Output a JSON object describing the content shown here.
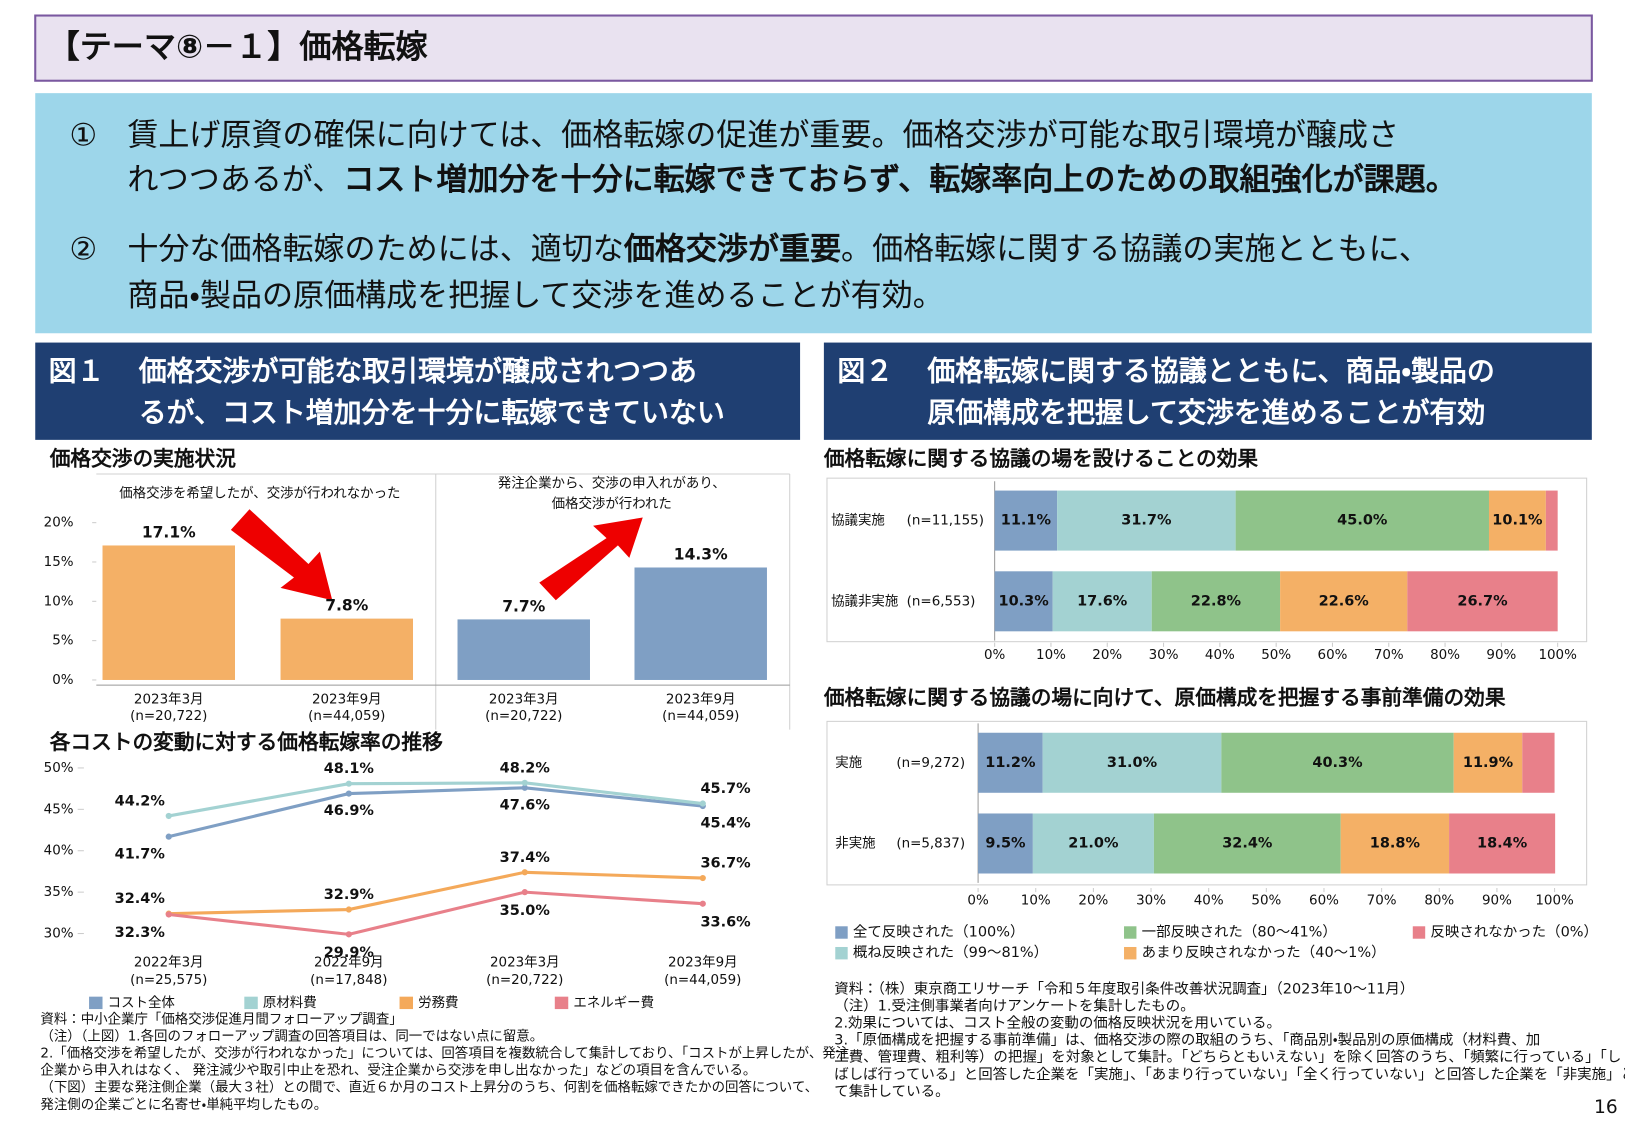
{
  "header": {
    "title": "【テーマ⑧－１】価格転嫁"
  },
  "summary": {
    "items": [
      {
        "marker": "①",
        "lines": [
          [
            {
              "text": "賃上げ原資の確保に向けては、価格転嫁の促進が重要。価格交渉が可能な取引環境が醸成さ",
              "bold": false
            }
          ],
          [
            {
              "text": "れつつあるが、",
              "bold": false
            },
            {
              "text": "コスト増加分を十分に転嫁できておらず、転嫁率向上のための取組強化が課題。",
              "bold": true
            }
          ]
        ]
      },
      {
        "marker": "②",
        "lines": [
          [
            {
              "text": "十分な価格転嫁のためには、適切な",
              "bold": false
            },
            {
              "text": "価格交渉が重要",
              "bold": true
            },
            {
              "text": "。価格転嫁に関する協議の実施とともに、",
              "bold": false
            }
          ],
          [
            {
              "text": "商品・製品の原価構成を把握して交渉を進めることが有効。",
              "bold": false
            }
          ]
        ]
      }
    ]
  },
  "figures": [
    {
      "label": "図１",
      "title_lines": [
        "価格交渉が可能な取引環境が醸成されつつあ",
        "るが、コスト増加分を十分に転嫁できていない"
      ],
      "notes": [
        "資料：中小企業庁「価格交渉促進月間フォローアップ調査」",
        "（注）（上図）1.各回のフォローアップ調査の回答項目は、同一ではない点に留意。",
        "2.「価格交渉を希望したが、交渉が行われなかった」については、回答項目を複数統合して集計しており、「コストが上昇したが、発注",
        "企業から申入れはなく、 発注減少や取引中止を恐れ、受注企業から交渉を申し出なかった」などの項目を含んでいる。",
        "（下図）主要な発注側企業（最大３社）との間で、直近６か月のコスト上昇分のうち、何割を価格転嫁できたかの回答について、",
        "発注側の企業ごとに名寄せ・単純平均したもの。"
      ]
    },
    {
      "label": "図２",
      "title_lines": [
        "価格転嫁に関する協議とともに、商品・製品の",
        "原価構成を把握して交渉を進めることが有効"
      ],
      "notes": [
        "資料：（株）東京商工リサーチ「令和５年度取引条件改善状況調査」（2023年10～11月）",
        "（注）1.受注側事業者向けアンケートを集計したもの。",
        "2.効果については、コスト全般の変動の価格反映状況を用いている。",
        "3.「原価構成を把握する事前準備」は、価格交渉の際の取組のうち、「商品別・製品別の原価構成（材料費、加",
        "工費、管理費、粗利等）の把握」を対象として集計。「どちらともいえない」を除く回答のうち、「頻繁に行っている」「し",
        "ばしば行っている」と回答した企業を「実施」、「あまり行っていない」「全く行っていない」と回答した企業を「非実施」とし",
        "て集計している。"
      ]
    }
  ],
  "page_number": "16",
  "chart_data": [
    {
      "type": "bar",
      "title": "価格交渉の実施状況",
      "group_labels": [
        [
          "価格交渉を希望したが、交渉が行われなかった"
        ],
        [
          "発注企業から、交渉の申入れがあり、",
          "価格交渉が行われた"
        ]
      ],
      "categories": [
        "2023年3月",
        "2023年9月",
        "2023年3月",
        "2023年9月"
      ],
      "sample_sizes": [
        "(n=20,722)",
        "(n=44,059)",
        "(n=20,722)",
        "(n=44,059)"
      ],
      "values": [
        17.1,
        7.8,
        7.7,
        14.3
      ],
      "value_labels": [
        "17.1%",
        "7.8%",
        "7.7%",
        "14.3%"
      ],
      "colors": [
        "#f4b066",
        "#f4b066",
        "#7f9fc4",
        "#7f9fc4"
      ],
      "ylim": [
        0,
        20
      ],
      "yticks": [
        {
          "value": 0,
          "label": "0%"
        },
        {
          "value": 5,
          "label": "5%"
        },
        {
          "value": 10,
          "label": "10%"
        },
        {
          "value": 15,
          "label": "15%"
        },
        {
          "value": 20,
          "label": "20%"
        }
      ]
    },
    {
      "type": "line",
      "title": "各コストの変動に対する価格転嫁率の推移",
      "categories": [
        "2022年3月",
        "2022年9月",
        "2023年3月",
        "2023年9月"
      ],
      "sample_sizes": [
        "(n=25,575)",
        "(n=17,848)",
        "(n=20,722)",
        "(n=44,059)"
      ],
      "series": [
        {
          "name": "コスト全体",
          "color": "#7f9fc4",
          "values": [
            41.7,
            46.9,
            47.6,
            45.4
          ],
          "value_labels": [
            "41.7%",
            "46.9%",
            "47.6%",
            "45.4%"
          ]
        },
        {
          "name": "原材料費",
          "color": "#a3d2d2",
          "values": [
            44.2,
            48.1,
            48.2,
            45.7
          ],
          "value_labels": [
            "44.2%",
            "48.1%",
            "48.2%",
            "45.7%"
          ]
        },
        {
          "name": "労務費",
          "color": "#f4a95a",
          "values": [
            32.4,
            32.9,
            37.4,
            36.7
          ],
          "value_labels": [
            "32.4%",
            "32.9%",
            "37.4%",
            "36.7%"
          ]
        },
        {
          "name": "エネルギー費",
          "color": "#e8808a",
          "values": [
            32.3,
            29.9,
            35.0,
            33.6
          ],
          "value_labels": [
            "32.3%",
            "29.9%",
            "35.0%",
            "33.6%"
          ]
        }
      ],
      "ylim": [
        28,
        50
      ],
      "yticks": [
        {
          "value": 30,
          "label": "30%"
        },
        {
          "value": 35,
          "label": "35%"
        },
        {
          "value": 40,
          "label": "40%"
        },
        {
          "value": 45,
          "label": "45%"
        },
        {
          "value": 50,
          "label": "50%"
        }
      ]
    },
    {
      "type": "stacked-barh",
      "title": "価格転嫁に関する協議の場を設けることの効果",
      "categories": [
        "協議実施",
        "協議非実施"
      ],
      "sample_sizes": [
        "(n=11,155)",
        "(n=6,553)"
      ],
      "series": [
        {
          "color": "#7f9fc4",
          "values": [
            11.1,
            10.3
          ],
          "value_labels": [
            "11.1%",
            "10.3%"
          ]
        },
        {
          "color": "#a3d2d2",
          "values": [
            31.7,
            17.6
          ],
          "value_labels": [
            "31.7%",
            "17.6%"
          ]
        },
        {
          "color": "#8fc38a",
          "values": [
            45.0,
            22.8
          ],
          "value_labels": [
            "45.0%",
            "22.8%"
          ]
        },
        {
          "color": "#f4b066",
          "values": [
            10.1,
            22.6
          ],
          "value_labels": [
            "10.1%",
            "22.6%"
          ]
        },
        {
          "color": "#e8808a",
          "values": [
            2.1,
            26.7
          ],
          "value_labels": [
            null,
            "26.7%"
          ]
        }
      ],
      "xlim": [
        0,
        100
      ],
      "xticks": [
        {
          "value": 0,
          "label": "0%"
        },
        {
          "value": 10,
          "label": "10%"
        },
        {
          "value": 20,
          "label": "20%"
        },
        {
          "value": 30,
          "label": "30%"
        },
        {
          "value": 40,
          "label": "40%"
        },
        {
          "value": 50,
          "label": "50%"
        },
        {
          "value": 60,
          "label": "60%"
        },
        {
          "value": 70,
          "label": "70%"
        },
        {
          "value": 80,
          "label": "80%"
        },
        {
          "value": 90,
          "label": "90%"
        },
        {
          "value": 100,
          "label": "100%"
        }
      ]
    },
    {
      "type": "stacked-barh",
      "title": "価格転嫁に関する協議の場に向けて、原価構成を把握する事前準備の効果",
      "categories": [
        "実施",
        "非実施"
      ],
      "sample_sizes": [
        "(n=9,272)",
        "(n=5,837)"
      ],
      "series": [
        {
          "name": "全て反映された（100%）",
          "color": "#7f9fc4",
          "values": [
            11.2,
            9.5
          ],
          "value_labels": [
            "11.2%",
            "9.5%"
          ]
        },
        {
          "name": "概ね反映された（99～81%）",
          "color": "#a3d2d2",
          "values": [
            31.0,
            21.0
          ],
          "value_labels": [
            "31.0%",
            "21.0%"
          ]
        },
        {
          "name": "一部反映された（80～41%）",
          "color": "#8fc38a",
          "values": [
            40.3,
            32.4
          ],
          "value_labels": [
            "40.3%",
            "32.4%"
          ]
        },
        {
          "name": "あまり反映されなかった（40～1%）",
          "color": "#f4b066",
          "values": [
            11.9,
            18.8
          ],
          "value_labels": [
            "11.9%",
            "18.8%"
          ]
        },
        {
          "name": "反映されなかった（0%）",
          "color": "#e8808a",
          "values": [
            5.6,
            18.4
          ],
          "value_labels": [
            null,
            "18.4%"
          ]
        }
      ],
      "xlim": [
        0,
        100
      ],
      "xticks": [
        {
          "value": 0,
          "label": "0%"
        },
        {
          "value": 10,
          "label": "10%"
        },
        {
          "value": 20,
          "label": "20%"
        },
        {
          "value": 30,
          "label": "30%"
        },
        {
          "value": 40,
          "label": "40%"
        },
        {
          "value": 50,
          "label": "50%"
        },
        {
          "value": 60,
          "label": "60%"
        },
        {
          "value": 70,
          "label": "70%"
        },
        {
          "value": 80,
          "label": "80%"
        },
        {
          "value": 90,
          "label": "90%"
        },
        {
          "value": 100,
          "label": "100%"
        }
      ]
    }
  ]
}
